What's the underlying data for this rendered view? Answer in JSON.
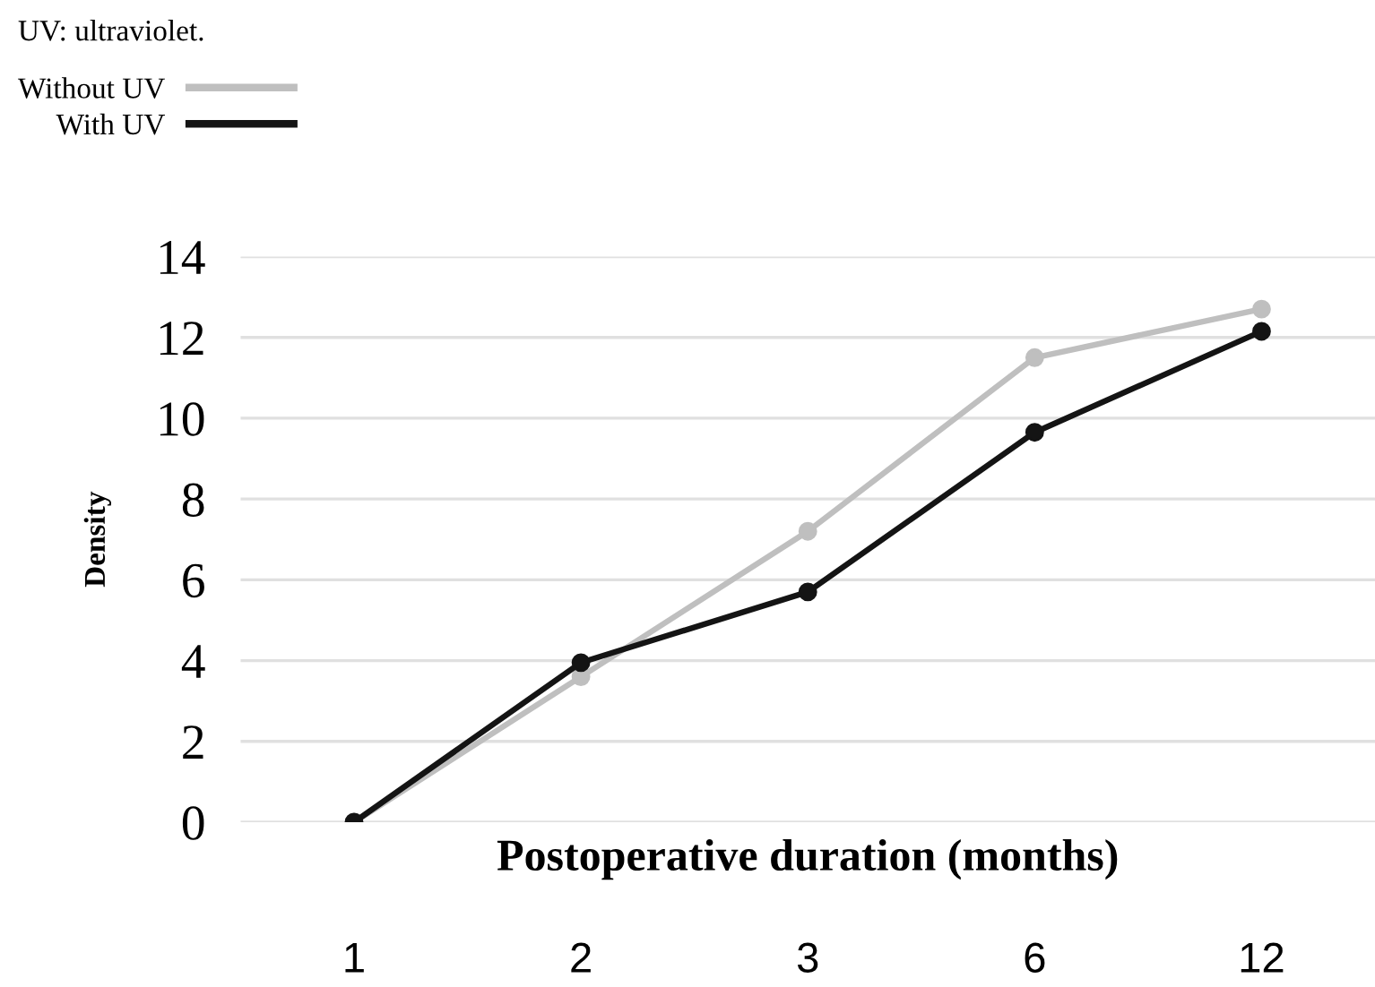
{
  "chart_data": {
    "type": "line",
    "xlabel": "Postoperative duration (months)",
    "ylabel": "Density",
    "categories": [
      "1",
      "2",
      "3",
      "6",
      "12"
    ],
    "series": [
      {
        "name": "Without UV",
        "color": "#bfbfbf",
        "values": [
          0,
          3.6,
          7.2,
          11.5,
          12.7
        ]
      },
      {
        "name": "With UV",
        "color": "#141414",
        "values": [
          0,
          3.95,
          5.7,
          9.65,
          12.15
        ]
      }
    ],
    "ylim": [
      0,
      14
    ],
    "yticks": [
      0,
      2,
      4,
      6,
      8,
      10,
      12,
      14
    ],
    "grid": "y",
    "legend": "top left",
    "marker": "circle",
    "line_style": "solid",
    "annotations": [
      "UV: ultraviolet."
    ]
  }
}
